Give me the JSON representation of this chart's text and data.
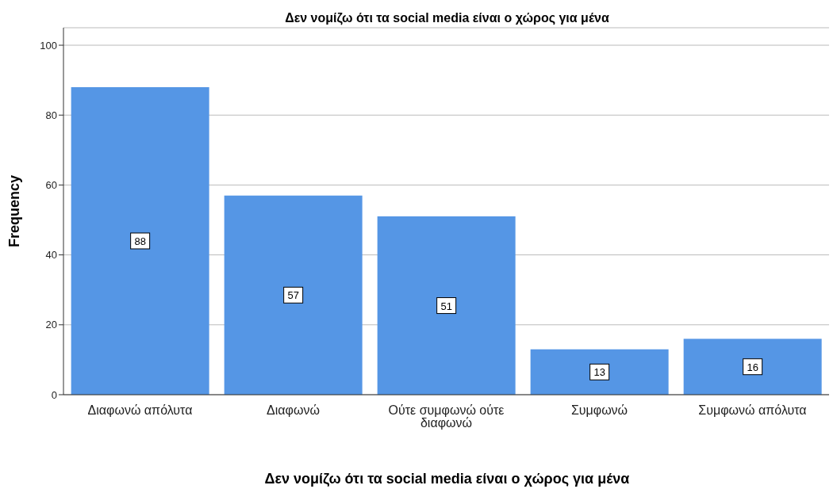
{
  "chart_data": {
    "type": "bar",
    "title": "Δεν νομίζω ότι τα social media είναι ο χώρος για μένα",
    "xlabel": "Δεν νομίζω ότι τα social media είναι ο χώρος για μένα",
    "ylabel": "Frequency",
    "categories": [
      "Διαφωνώ απόλυτα",
      "Διαφωνώ",
      "Ούτε συμφωνώ ούτε διαφωνώ",
      "Συμφωνώ",
      "Συμφωνώ απόλυτα"
    ],
    "values": [
      88,
      57,
      51,
      13,
      16
    ],
    "color": "#5596e5",
    "ylim": [
      0,
      105
    ],
    "yticks": [
      0,
      20,
      40,
      60,
      80,
      100
    ],
    "grid": "y",
    "data_labels": true
  }
}
